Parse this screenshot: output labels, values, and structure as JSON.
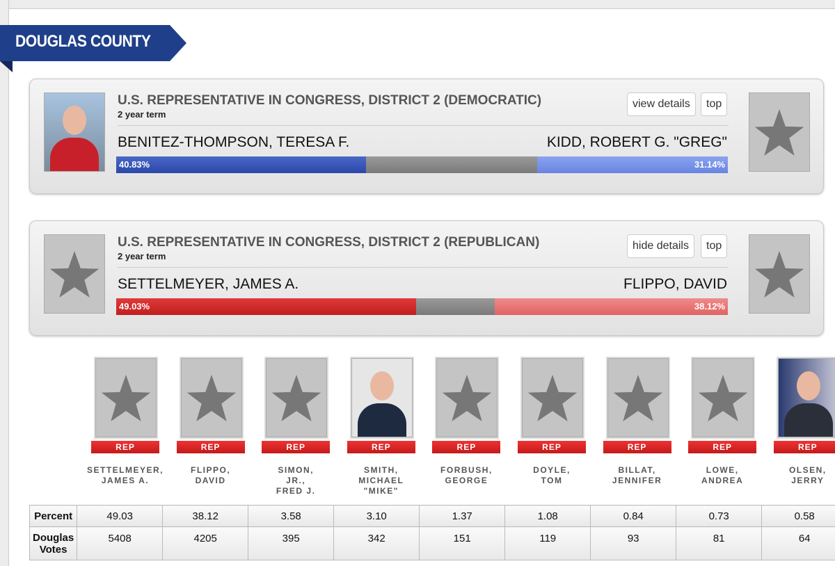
{
  "header": {
    "county": "DOUGLAS COUNTY"
  },
  "races": [
    {
      "title": "U.S. REPRESENTATIVE IN CONGRESS, DISTRICT 2 (DEMOCRATIC)",
      "term": "2 year term",
      "buttons": [
        "view details",
        "top"
      ],
      "left_candidate": "BENITEZ-THOMPSON, TERESA F.",
      "right_candidate": "KIDD, ROBERT G. \"GREG\"",
      "left_percent": "40.83%",
      "right_percent": "31.14%"
    },
    {
      "title": "U.S. REPRESENTATIVE IN CONGRESS, DISTRICT 2 (REPUBLICAN)",
      "term": "2 year term",
      "buttons": [
        "hide details",
        "top"
      ],
      "left_candidate": "SETTELMEYER, JAMES A.",
      "right_candidate": "FLIPPO, DAVID",
      "left_percent": "49.03%",
      "right_percent": "38.12%"
    }
  ],
  "candidates": [
    {
      "party": "REP",
      "name_lines": [
        "SETTELMEYER,",
        "JAMES A."
      ]
    },
    {
      "party": "REP",
      "name_lines": [
        "FLIPPO,",
        "DAVID"
      ]
    },
    {
      "party": "REP",
      "name_lines": [
        "SIMON,",
        "JR.,",
        "FRED J."
      ]
    },
    {
      "party": "REP",
      "name_lines": [
        "SMITH,",
        "MICHAEL",
        "\"MIKE\""
      ]
    },
    {
      "party": "REP",
      "name_lines": [
        "FORBUSH,",
        "GEORGE"
      ]
    },
    {
      "party": "REP",
      "name_lines": [
        "DOYLE,",
        "TOM"
      ]
    },
    {
      "party": "REP",
      "name_lines": [
        "BILLAT,",
        "JENNIFER"
      ]
    },
    {
      "party": "REP",
      "name_lines": [
        "LOWE,",
        "ANDREA"
      ]
    },
    {
      "party": "REP",
      "name_lines": [
        "OLSEN,",
        "JERRY"
      ]
    }
  ],
  "table": {
    "row_labels": [
      "Percent",
      "Douglas Votes"
    ],
    "rows": [
      [
        "49.03",
        "38.12",
        "3.58",
        "3.10",
        "1.37",
        "1.08",
        "0.84",
        "0.73",
        "0.58"
      ],
      [
        5408,
        4205,
        395,
        342,
        151,
        119,
        93,
        81,
        64
      ]
    ]
  }
}
